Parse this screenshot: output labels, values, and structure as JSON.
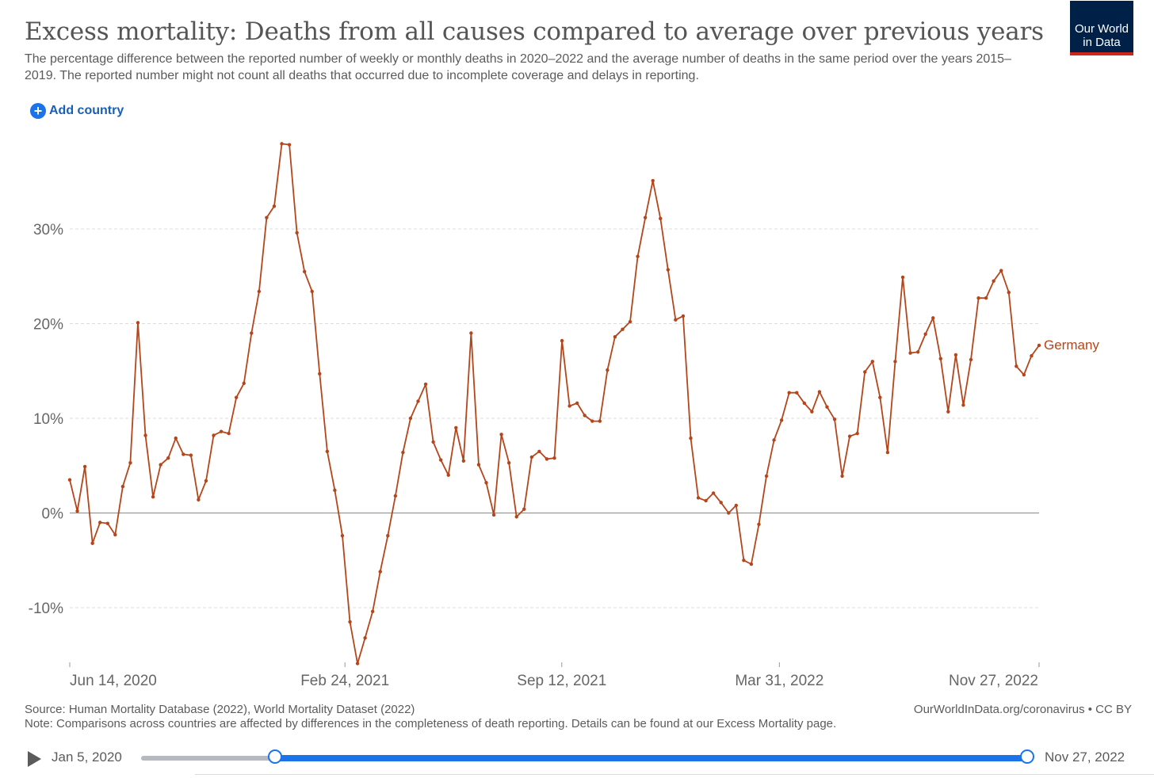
{
  "header": {
    "title": "Excess mortality: Deaths from all causes compared to average over previous years",
    "subtitle": "The percentage difference between the reported number of weekly or monthly deaths in 2020–2022 and the average number of deaths in the same period over the years 2015–2019. The reported number might not count all deaths that occurred due to incomplete coverage and delays in reporting.",
    "logo_line1": "Our World",
    "logo_line2": "in Data",
    "add_country": "Add country"
  },
  "colors": {
    "series": "#b5451b",
    "accent": "#1a73e8",
    "logo_bg": "#002147",
    "logo_bar": "#ce261e"
  },
  "chart_data": {
    "type": "line",
    "x_start": "Jun 14, 2020",
    "x_end": "Nov 27, 2022",
    "x_ticks": [
      "Jun 14, 2020",
      "Feb 24, 2021",
      "Sep 12, 2021",
      "Mar 31, 2022",
      "Nov 27, 2022"
    ],
    "y_ticks": [
      "-10%",
      "0%",
      "10%",
      "20%",
      "30%"
    ],
    "y_tick_values": [
      -10,
      0,
      10,
      20,
      30
    ],
    "ylim": [
      -16,
      40
    ],
    "grid": true,
    "series": [
      {
        "name": "Germany",
        "values": [
          3.5,
          0.2,
          4.9,
          -3.2,
          -1.0,
          -1.1,
          -2.3,
          2.8,
          5.3,
          20.1,
          8.2,
          1.7,
          5.1,
          5.8,
          7.9,
          6.2,
          6.1,
          1.4,
          3.4,
          8.2,
          8.6,
          8.4,
          12.2,
          13.7,
          19.0,
          23.4,
          31.2,
          32.4,
          39.0,
          38.9,
          29.6,
          25.5,
          23.4,
          14.7,
          6.5,
          2.4,
          -2.4,
          -11.5,
          -15.9,
          -13.2,
          -10.4,
          -6.2,
          -2.4,
          1.8,
          6.4,
          10.0,
          11.8,
          13.6,
          7.5,
          5.6,
          4.0,
          9.0,
          5.5,
          19.0,
          5.1,
          3.2,
          -0.2,
          8.3,
          5.3,
          -0.4,
          0.4,
          5.9,
          6.5,
          5.7,
          5.8,
          18.2,
          11.3,
          11.6,
          10.3,
          9.7,
          9.7,
          15.1,
          18.6,
          19.4,
          20.2,
          27.1,
          31.2,
          35.1,
          31.1,
          25.7,
          20.4,
          20.8,
          7.9,
          1.6,
          1.3,
          2.1,
          1.1,
          0.0,
          0.8,
          -5.0,
          -5.4,
          -1.2,
          3.9,
          7.7,
          9.8,
          12.7,
          12.7,
          11.6,
          10.7,
          12.8,
          11.2,
          9.9,
          3.9,
          8.1,
          8.4,
          14.9,
          16.0,
          12.2,
          6.4,
          16.0,
          24.9,
          16.9,
          17.0,
          18.9,
          20.6,
          16.3,
          10.7,
          16.7,
          11.4,
          16.2,
          22.7,
          22.7,
          24.5,
          25.6,
          23.3,
          15.5,
          14.6,
          16.6,
          17.7
        ]
      }
    ]
  },
  "footer": {
    "source": "Source: Human Mortality Database (2022), World Mortality Dataset (2022)",
    "note": "Note: Comparisons across countries are affected by differences in the completeness of death reporting. Details can be found at our Excess Mortality page.",
    "credit": "OurWorldInData.org/coronavirus • CC BY"
  },
  "timeline": {
    "start_label": "Jan 5, 2020",
    "end_label": "Nov 27, 2022"
  }
}
